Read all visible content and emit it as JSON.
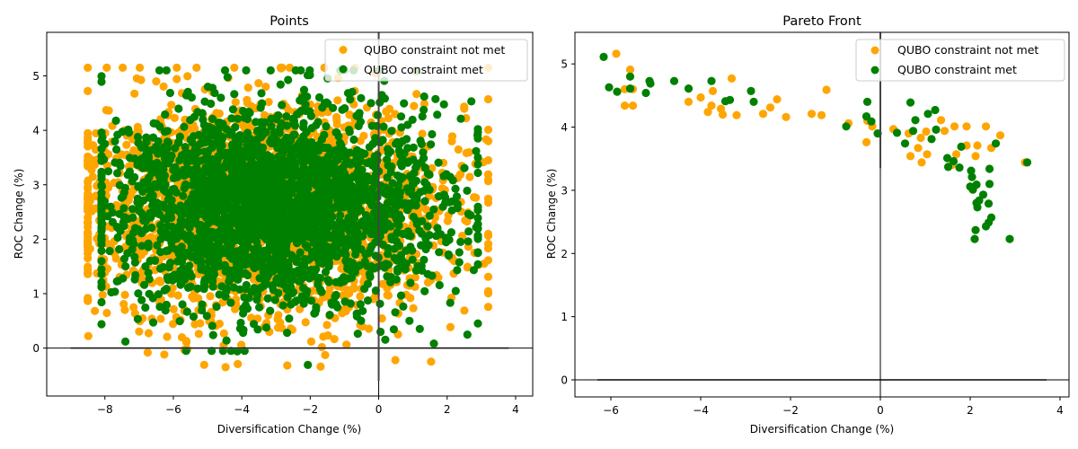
{
  "colors": {
    "not_met": "#ffa500",
    "met": "#008000",
    "axis": "#000000",
    "legend_border": "#cccccc"
  },
  "chart_data": [
    {
      "type": "scatter",
      "title": "Points",
      "xlabel": "Diversification Change (%)",
      "ylabel": "ROC Change (%)",
      "xlim": [
        -9.7,
        4.5
      ],
      "ylim": [
        -0.88,
        5.8
      ],
      "xticks": [
        -8,
        -6,
        -4,
        -2,
        0,
        2,
        4
      ],
      "xtick_labels": [
        "−8",
        "−6",
        "−4",
        "−2",
        "0",
        "2",
        "4"
      ],
      "yticks": [
        0,
        1,
        2,
        3,
        4,
        5
      ],
      "ytick_labels": [
        "0",
        "1",
        "2",
        "3",
        "4",
        "5"
      ],
      "reference_lines": {
        "hline_y": 0,
        "hline_x_range": [
          -9,
          3.8
        ],
        "vline_x": 0,
        "vline_y_range": [
          -0.6,
          5.8
        ]
      },
      "legend": {
        "placement": "upper right",
        "entries": [
          "QUBO constraint not met",
          "QUBO constraint met"
        ]
      },
      "series": [
        {
          "name": "QUBO constraint not met",
          "color_key": "not_met",
          "distribution": {
            "n": 2600,
            "x_mean": -3.4,
            "x_std": 2.55,
            "x_range": [
              -8.5,
              3.2
            ],
            "y_mean": 2.55,
            "y_std": 0.95,
            "y_range": [
              -0.35,
              5.15
            ],
            "seed": 11
          },
          "outliers": [
            [
              -6.75,
              -0.08
            ],
            [
              -5.68,
              -0.03
            ],
            [
              -4.53,
              0.05
            ],
            [
              -2.67,
              -0.32
            ],
            [
              -1.97,
              0.12
            ],
            [
              -8.5,
              2.6
            ],
            [
              3.2,
              3.45
            ],
            [
              2.8,
              1.75
            ],
            [
              -8.15,
              1.38
            ],
            [
              -5.9,
              5.15
            ],
            [
              -6.5,
              4.9
            ],
            [
              -3.3,
              4.8
            ],
            [
              -1.2,
              4.55
            ]
          ]
        },
        {
          "name": "QUBO constraint met",
          "color_key": "met",
          "distribution": {
            "n": 2600,
            "x_mean": -3.2,
            "x_std": 2.45,
            "x_range": [
              -8.1,
              2.9
            ],
            "y_mean": 2.6,
            "y_std": 0.9,
            "y_range": [
              -0.05,
              5.1
            ],
            "seed": 29
          },
          "outliers": [
            [
              -7.4,
              0.12
            ],
            [
              -4.13,
              -0.06
            ],
            [
              -2.07,
              -0.31
            ],
            [
              -6.2,
              5.1
            ],
            [
              2.9,
              3.5
            ],
            [
              2.85,
              2.22
            ],
            [
              0.9,
              0.5
            ],
            [
              2.25,
              1.05
            ],
            [
              -8.0,
              3.75
            ]
          ]
        }
      ]
    },
    {
      "type": "scatter",
      "title": "Pareto Front",
      "xlabel": "Diversification Change (%)",
      "ylabel": "ROC Change (%)",
      "xlim": [
        -6.8,
        4.2
      ],
      "ylim": [
        -0.27,
        5.5
      ],
      "xticks": [
        -6,
        -4,
        -2,
        0,
        2,
        4
      ],
      "xtick_labels": [
        "−6",
        "−4",
        "−2",
        "0",
        "2",
        "4"
      ],
      "yticks": [
        0,
        1,
        2,
        3,
        4,
        5
      ],
      "ytick_labels": [
        "0",
        "1",
        "2",
        "3",
        "4",
        "5"
      ],
      "reference_lines": {
        "hline_y": 0,
        "hline_x_range": [
          -6.3,
          3.7
        ],
        "vline_x": 0,
        "vline_y_range": [
          3.35,
          5.5
        ]
      },
      "legend": {
        "placement": "upper right",
        "entries": [
          "QUBO constraint not met",
          "QUBO constraint met"
        ]
      },
      "series": [
        {
          "name": "QUBO constraint not met",
          "color_key": "not_met",
          "points": [
            [
              -5.88,
              5.16
            ],
            [
              -5.57,
              4.91
            ],
            [
              -5.69,
              4.6
            ],
            [
              -5.51,
              4.6
            ],
            [
              -5.69,
              4.34
            ],
            [
              -5.51,
              4.34
            ],
            [
              -4.27,
              4.4
            ],
            [
              -4.0,
              4.47
            ],
            [
              -3.73,
              4.57
            ],
            [
              -3.76,
              4.34
            ],
            [
              -3.84,
              4.24
            ],
            [
              -3.55,
              4.29
            ],
            [
              -3.51,
              4.2
            ],
            [
              -3.2,
              4.19
            ],
            [
              -3.31,
              4.77
            ],
            [
              -2.61,
              4.21
            ],
            [
              -2.45,
              4.31
            ],
            [
              -2.1,
              4.16
            ],
            [
              -2.3,
              4.44
            ],
            [
              -1.53,
              4.21
            ],
            [
              -1.31,
              4.19
            ],
            [
              -1.2,
              4.59
            ],
            [
              -0.71,
              4.06
            ],
            [
              -0.29,
              4.1
            ],
            [
              -0.31,
              3.76
            ],
            [
              -0.18,
              4.01
            ],
            [
              0.29,
              3.97
            ],
            [
              0.63,
              3.9
            ],
            [
              0.67,
              3.54
            ],
            [
              0.84,
              3.67
            ],
            [
              0.9,
              3.83
            ],
            [
              1.02,
              3.93
            ],
            [
              1.04,
              3.57
            ],
            [
              1.35,
              4.11
            ],
            [
              1.43,
              3.94
            ],
            [
              1.65,
              4.01
            ],
            [
              1.92,
              4.01
            ],
            [
              2.35,
              4.01
            ],
            [
              2.67,
              3.87
            ],
            [
              1.92,
              3.71
            ],
            [
              2.16,
              3.71
            ],
            [
              2.12,
              3.54
            ],
            [
              2.47,
              3.67
            ],
            [
              3.22,
              3.44
            ],
            [
              1.69,
              3.57
            ],
            [
              1.59,
              3.4
            ],
            [
              0.92,
              3.44
            ]
          ]
        },
        {
          "name": "QUBO constraint met",
          "color_key": "met",
          "points": [
            [
              -6.16,
              5.11
            ],
            [
              -6.04,
              4.63
            ],
            [
              -5.86,
              4.56
            ],
            [
              -5.57,
              4.8
            ],
            [
              -5.57,
              4.61
            ],
            [
              -5.22,
              4.54
            ],
            [
              -5.14,
              4.73
            ],
            [
              -5.12,
              4.69
            ],
            [
              -4.59,
              4.73
            ],
            [
              -4.27,
              4.61
            ],
            [
              -3.76,
              4.73
            ],
            [
              -3.45,
              4.41
            ],
            [
              -3.35,
              4.43
            ],
            [
              -2.88,
              4.57
            ],
            [
              -2.82,
              4.4
            ],
            [
              -0.76,
              4.01
            ],
            [
              -0.29,
              4.4
            ],
            [
              -0.31,
              4.17
            ],
            [
              -0.2,
              4.09
            ],
            [
              -0.06,
              3.9
            ],
            [
              0.37,
              3.91
            ],
            [
              0.55,
              3.74
            ],
            [
              0.67,
              4.39
            ],
            [
              0.73,
              3.94
            ],
            [
              0.78,
              4.11
            ],
            [
              1.06,
              4.21
            ],
            [
              1.22,
              4.27
            ],
            [
              1.14,
              3.81
            ],
            [
              1.24,
              3.96
            ],
            [
              1.49,
              3.51
            ],
            [
              1.63,
              3.46
            ],
            [
              1.8,
              3.69
            ],
            [
              1.51,
              3.37
            ],
            [
              1.76,
              3.36
            ],
            [
              2.02,
              3.31
            ],
            [
              2.04,
              3.21
            ],
            [
              2.0,
              3.06
            ],
            [
              2.14,
              3.09
            ],
            [
              2.43,
              3.34
            ],
            [
              2.06,
              3.01
            ],
            [
              2.29,
              2.93
            ],
            [
              2.43,
              3.1
            ],
            [
              2.2,
              2.84
            ],
            [
              2.14,
              2.8
            ],
            [
              2.41,
              2.79
            ],
            [
              2.16,
              2.73
            ],
            [
              2.47,
              2.57
            ],
            [
              2.12,
              2.37
            ],
            [
              2.41,
              2.49
            ],
            [
              2.35,
              2.43
            ],
            [
              2.1,
              2.23
            ],
            [
              2.88,
              2.23
            ],
            [
              3.27,
              3.44
            ],
            [
              2.57,
              3.74
            ]
          ]
        }
      ]
    }
  ]
}
